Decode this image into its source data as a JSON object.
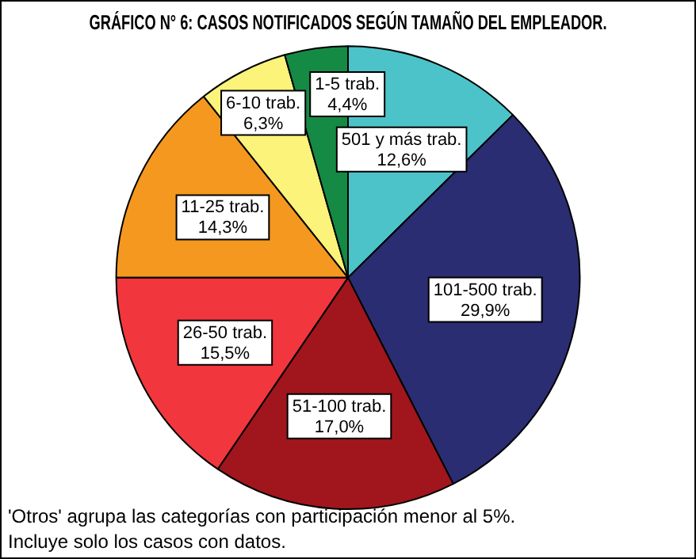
{
  "chart_data": {
    "type": "pie",
    "title": "GRÁFICO N° 6: CASOS NOTIFICADOS SEGÚN TAMAÑO DEL EMPLEADOR.",
    "categories": [
      "501 y más trab.",
      "101-500 trab.",
      "51-100 trab.",
      "26-50 trab.",
      "11-25 trab.",
      "6-10 trab.",
      "1-5 trab."
    ],
    "values": [
      12.6,
      29.9,
      17.0,
      15.5,
      14.3,
      6.3,
      4.4
    ],
    "value_labels": [
      "12,6%",
      "29,9%",
      "17,0%",
      "15,5%",
      "14,3%",
      "6,3%",
      "4,4%"
    ],
    "colors": [
      "#4cc3c8",
      "#2b2d72",
      "#a0161c",
      "#f2363e",
      "#f5981f",
      "#fbf37a",
      "#158a45"
    ],
    "legend": false,
    "annotations": [
      "'Otros' agrupa las categorías con participación menor al 5%.",
      "Incluye solo los casos con datos."
    ]
  }
}
